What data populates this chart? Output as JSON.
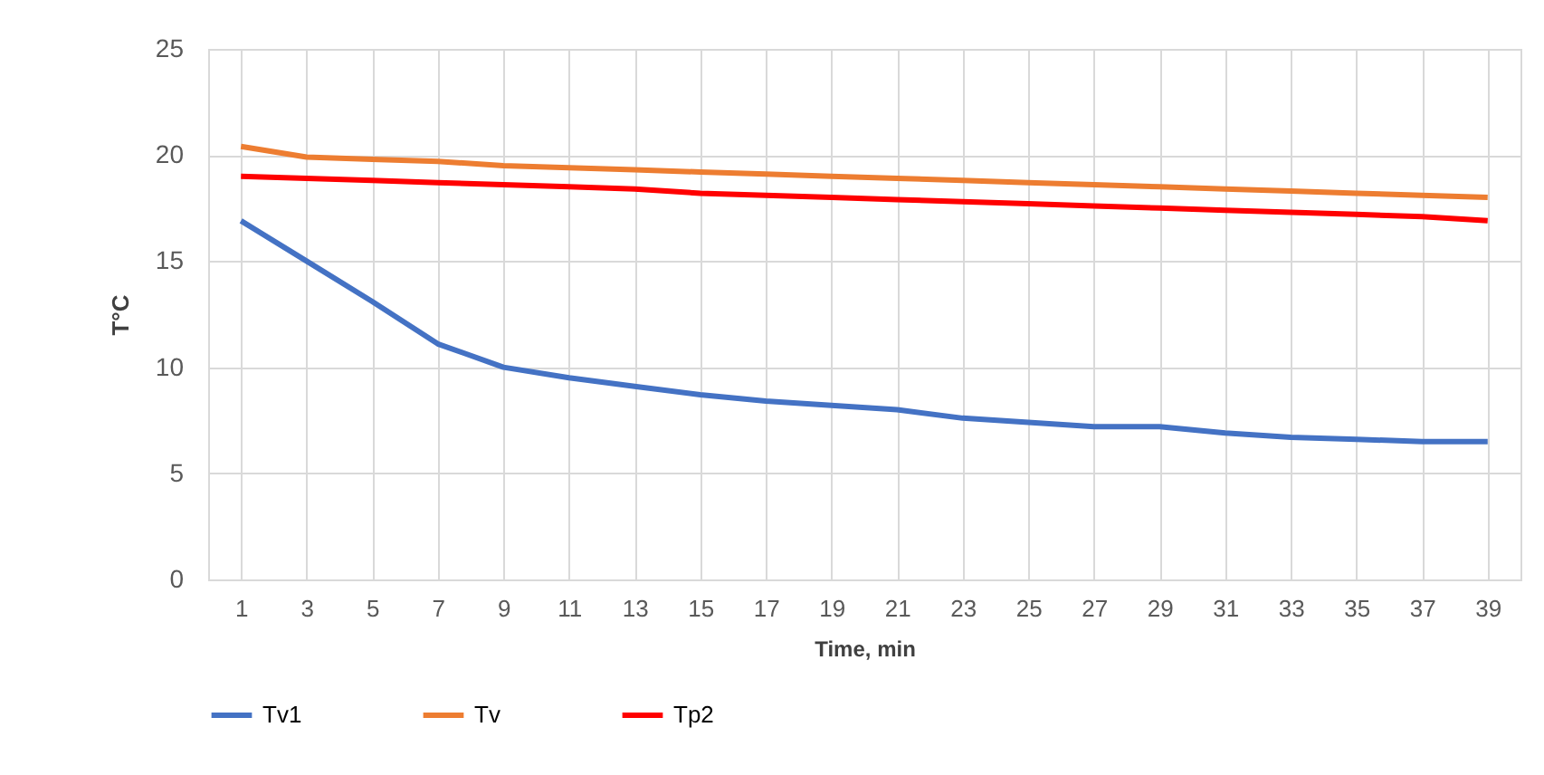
{
  "chart_data": {
    "type": "line",
    "xlabel": "Time, min",
    "ylabel": "T°C",
    "x": [
      1,
      3,
      5,
      7,
      9,
      11,
      13,
      15,
      17,
      19,
      21,
      23,
      25,
      27,
      29,
      31,
      33,
      35,
      37,
      39
    ],
    "series": [
      {
        "name": "Tv1",
        "color": "#4472c4",
        "values": [
          16.9,
          15.0,
          13.1,
          11.1,
          10.0,
          9.5,
          9.1,
          8.7,
          8.4,
          8.2,
          8.0,
          7.6,
          7.4,
          7.2,
          7.2,
          6.9,
          6.7,
          6.6,
          6.5,
          6.5
        ]
      },
      {
        "name": "Tv",
        "color": "#ed7d31",
        "values": [
          20.4,
          19.9,
          19.8,
          19.7,
          19.5,
          19.4,
          19.3,
          19.2,
          19.1,
          19.0,
          18.9,
          18.8,
          18.7,
          18.6,
          18.5,
          18.4,
          18.3,
          18.2,
          18.1,
          18.0
        ]
      },
      {
        "name": "Tp2",
        "color": "#ff0000",
        "values": [
          19.0,
          18.9,
          18.8,
          18.7,
          18.6,
          18.5,
          18.4,
          18.2,
          18.1,
          18.0,
          17.9,
          17.8,
          17.7,
          17.6,
          17.5,
          17.4,
          17.3,
          17.2,
          17.1,
          16.9
        ]
      }
    ],
    "xlim": [
      0,
      40
    ],
    "xticks": [
      1,
      3,
      5,
      7,
      9,
      11,
      13,
      15,
      17,
      19,
      21,
      23,
      25,
      27,
      29,
      31,
      33,
      35,
      37,
      39
    ],
    "ylim": [
      0,
      25
    ],
    "yticks": [
      0,
      5,
      10,
      15,
      20,
      25
    ],
    "grid": true,
    "legend": "bottom",
    "marker": "none",
    "line_style": "solid"
  }
}
